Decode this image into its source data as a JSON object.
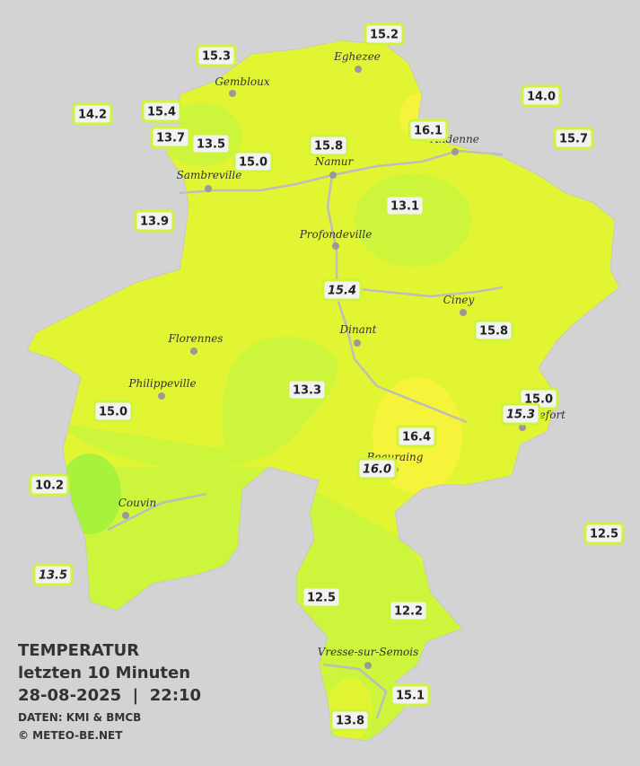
{
  "legend": {
    "title": "TEMPERATUR",
    "period": "letzten 10 Minuten",
    "datetime": "28-08-2025  |  22:10",
    "source": "DATEN: KMI & BMCB",
    "copyright": "© METEO-BE.NET"
  },
  "cities": [
    "Eghezee",
    "Gembloux",
    "Andenne",
    "Namur",
    "Sambreville",
    "Profondeville",
    "Ciney",
    "Dinant",
    "Florennes",
    "Philippeville",
    "Beauraing",
    "Rochefort",
    "Couvin",
    "Vresse-sur-Semois"
  ],
  "stations": [
    "15.2",
    "15.3",
    "14.0",
    "14.2",
    "15.4",
    "16.1",
    "15.7",
    "13.7",
    "13.5",
    "15.8",
    "15.0",
    "13.9",
    "13.1",
    "15.4",
    "15.8",
    "13.3",
    "15.0",
    "15.3",
    "15.0",
    "16.4",
    "16.0",
    "10.2",
    "12.5",
    "13.5",
    "12.5",
    "12.2",
    "15.1",
    "13.8"
  ]
}
